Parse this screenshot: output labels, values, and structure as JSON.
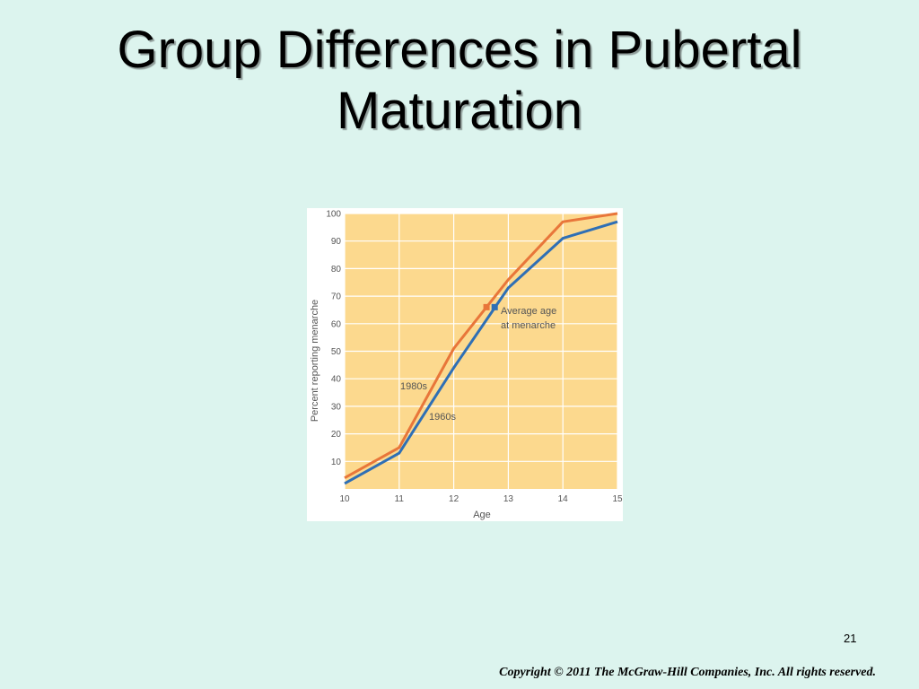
{
  "slide": {
    "title_line1": "Group Differences in Pubertal",
    "title_line2": "Maturation",
    "page_number": "21",
    "copyright": "Copyright © 2011 The McGraw-Hill Companies, Inc. All rights reserved."
  },
  "chart_data": {
    "type": "line",
    "title": "",
    "xlabel": "Age",
    "ylabel": "Percent reporting menarche",
    "xlim": [
      10,
      15
    ],
    "ylim": [
      0,
      100
    ],
    "x_ticks": [
      10,
      11,
      12,
      13,
      14,
      15
    ],
    "y_ticks": [
      10,
      20,
      30,
      40,
      50,
      60,
      70,
      80,
      90,
      100
    ],
    "grid": true,
    "plot_background": "#fcd98e",
    "gridline_color": "#ffffff",
    "series": [
      {
        "name": "1980s",
        "color": "#e8763a",
        "points": [
          [
            10,
            4
          ],
          [
            11,
            15
          ],
          [
            12,
            51
          ],
          [
            13,
            76
          ],
          [
            14,
            97
          ],
          [
            15,
            100
          ]
        ],
        "average_age_at_menarche": [
          12.6,
          66
        ]
      },
      {
        "name": "1960s",
        "color": "#2f6fb5",
        "points": [
          [
            10,
            2
          ],
          [
            11,
            13
          ],
          [
            12,
            44
          ],
          [
            13,
            73
          ],
          [
            14,
            91
          ],
          [
            15,
            97
          ]
        ],
        "average_age_at_menarche": [
          12.75,
          66
        ]
      }
    ],
    "annotation": {
      "line1": "Average age",
      "line2": "at menarche"
    }
  }
}
